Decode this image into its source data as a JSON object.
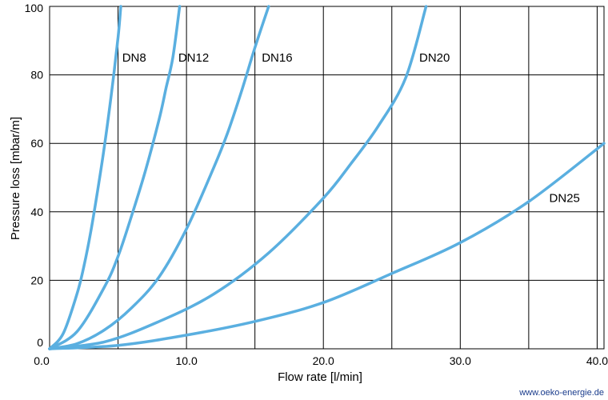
{
  "chart_data": {
    "type": "line",
    "title": "",
    "xlabel": "Flow rate [l/min]",
    "ylabel": "Pressure loss [mbar/m]",
    "xlim": [
      0,
      40.5
    ],
    "ylim": [
      0,
      100
    ],
    "x_ticks": [
      "0.0",
      "10.0",
      "20.0",
      "30.0",
      "40.0"
    ],
    "x_tick_values": [
      0,
      10,
      20,
      30,
      40
    ],
    "y_ticks": [
      "0",
      "20",
      "40",
      "60",
      "80",
      "100"
    ],
    "y_tick_values": [
      0,
      20,
      40,
      60,
      80,
      100
    ],
    "x_grid_values": [
      0,
      5,
      10,
      15,
      20,
      25,
      30,
      35,
      40
    ],
    "y_grid_values": [
      0,
      20,
      40,
      60,
      80,
      100
    ],
    "grid": true,
    "line_color": "#5aafe0",
    "series": [
      {
        "name": "DN8",
        "label_at": [
          5.3,
          85
        ],
        "x": [
          0,
          1,
          2,
          2.5,
          3,
          3.5,
          4,
          4.5,
          5.0,
          5.2
        ],
        "y": [
          0,
          4.5,
          16,
          24,
          34,
          46,
          59,
          74,
          91,
          100
        ]
      },
      {
        "name": "DN12",
        "label_at": [
          9.4,
          85
        ],
        "x": [
          0,
          2,
          4,
          5,
          6,
          7,
          8,
          8.5,
          9.0,
          9.5
        ],
        "y": [
          0,
          5,
          18,
          27,
          39,
          52,
          67,
          76,
          85,
          100
        ]
      },
      {
        "name": "DN16",
        "label_at": [
          15.5,
          85
        ],
        "x": [
          0,
          2,
          4,
          6,
          8,
          10,
          12,
          13,
          14,
          15,
          16
        ],
        "y": [
          0,
          1.5,
          5.5,
          12,
          21,
          35,
          53,
          63,
          75,
          88,
          100
        ]
      },
      {
        "name": "DN20",
        "label_at": [
          27,
          85
        ],
        "x": [
          0,
          4,
          8,
          12,
          16,
          20,
          22,
          24,
          26,
          27.5
        ],
        "y": [
          0,
          2,
          8,
          16,
          28,
          44,
          54,
          65,
          79,
          100
        ]
      },
      {
        "name": "DN25",
        "label_at": [
          36.5,
          44
        ],
        "x": [
          0,
          5,
          10,
          15,
          20,
          25,
          30,
          35,
          40.5
        ],
        "y": [
          0,
          1,
          4,
          8,
          13.5,
          22,
          31,
          43,
          60
        ]
      }
    ]
  },
  "credit": "www.oeko-energie.de"
}
